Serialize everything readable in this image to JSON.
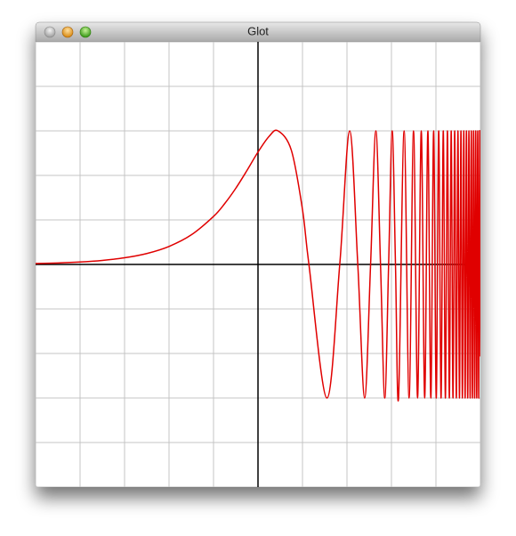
{
  "window": {
    "title": "Glot"
  },
  "chart_data": {
    "type": "line",
    "xlim": [
      -5,
      5
    ],
    "ylim": [
      -1.6667,
      1.6667
    ],
    "xticks": [
      -5,
      -4,
      -3,
      -2,
      -1,
      0,
      1,
      2,
      3,
      4,
      5
    ],
    "yticks": [
      -1.6667,
      -1.3333,
      -1,
      -0.6667,
      -0.3333,
      0,
      0.3333,
      0.6667,
      1,
      1.3333,
      1.6667
    ],
    "grid": true,
    "series": [
      {
        "color": "#e00000",
        "x": [
          -5,
          -4.5,
          -4,
          -3.5,
          -3,
          -2.5,
          -2,
          -1.5,
          -1,
          -0.75,
          -0.5,
          -0.25,
          0,
          0.25,
          0.4516,
          0.75,
          1,
          1.1447,
          1.5502,
          1.8379,
          2.061,
          2.2433,
          2.3976,
          2.531,
          2.6488,
          2.7542,
          2.8495,
          2.9365,
          3.0166,
          3.0907,
          3.1597,
          3.2847,
          3.3962,
          3.4962,
          3.5872,
          3.6704,
          3.7474,
          3.8188,
          3.8855,
          3.9481,
          4.007,
          4.0625,
          4.1151,
          4.1651,
          4.2127,
          4.2583,
          4.3017,
          4.3434,
          4.3834,
          4.4219,
          4.4589,
          4.4947,
          4.5291,
          4.5624,
          4.5947,
          4.6259,
          4.6563,
          4.6857,
          4.7143,
          4.742,
          4.7691,
          4.7954,
          4.821,
          4.846,
          4.8704,
          4.8941,
          4.9174,
          4.9402,
          4.9624,
          4.9841,
          5
        ],
        "values": [
          0.0067,
          0.0111,
          0.0183,
          0.0302,
          0.0498,
          0.0819,
          0.1349,
          0.2213,
          0.3596,
          0.455,
          0.57,
          0.7023,
          0.8415,
          0.9594,
          1,
          0.8547,
          0.4108,
          0,
          -1,
          0,
          1,
          0,
          -1,
          0,
          1,
          0,
          -1,
          0,
          1,
          0,
          -1,
          1,
          -1,
          1,
          -1,
          1,
          -1,
          1,
          -1,
          1,
          -1,
          1,
          -1,
          1,
          -1,
          1,
          -1,
          1,
          -1,
          1,
          -1,
          1,
          -1,
          1,
          -1,
          1,
          -1,
          1,
          -1,
          1,
          -1,
          1,
          -1,
          1,
          -1,
          1,
          -1,
          1,
          -1,
          1,
          -0.689
        ]
      }
    ]
  }
}
